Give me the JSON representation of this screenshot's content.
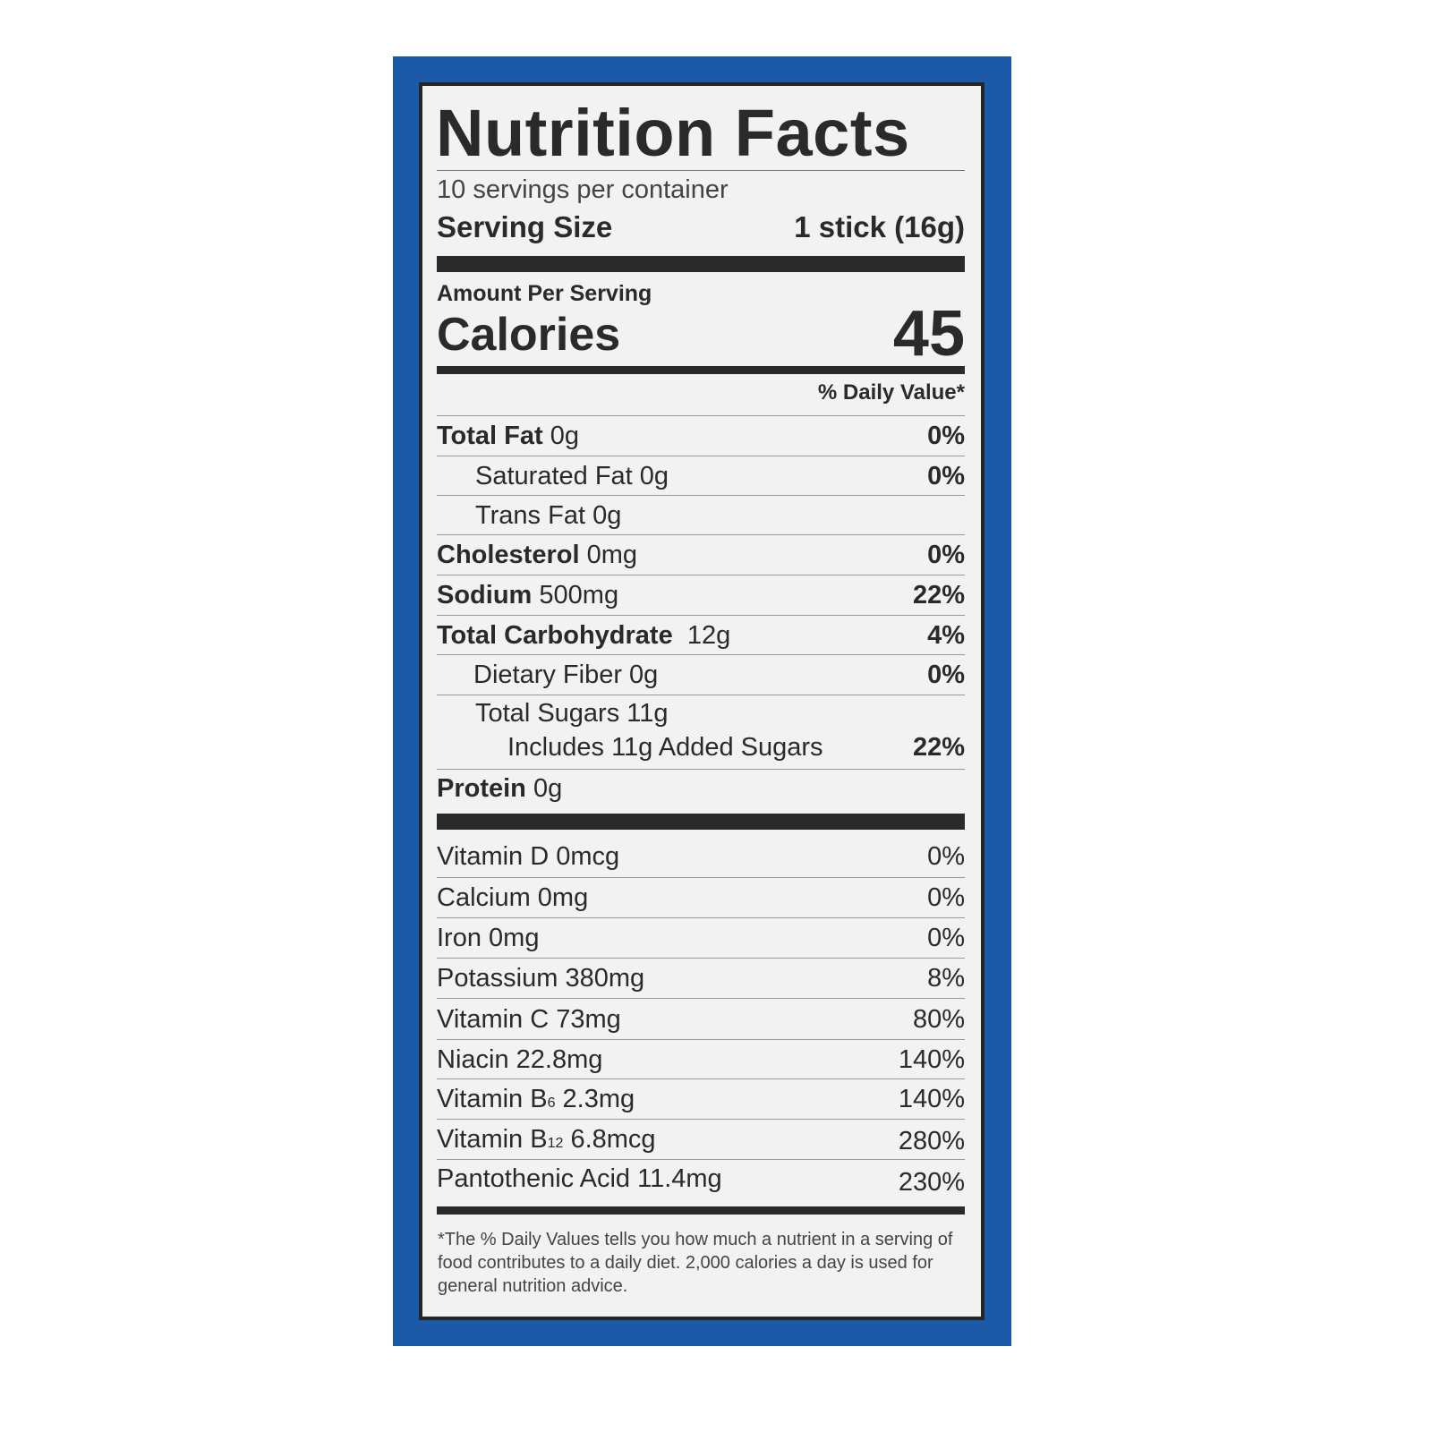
{
  "title": "Nutrition Facts",
  "servings_per_container": "10 servings per container",
  "serving_size": {
    "label": "Serving Size",
    "value": "1 stick (16g)"
  },
  "amount_per_serving": "Amount Per Serving",
  "calories": {
    "label": "Calories",
    "value": "45"
  },
  "daily_value_header": "% Daily Value*",
  "nutrients": [
    {
      "label": "Total Fat",
      "amount": "0g",
      "dv": "0%"
    },
    {
      "label": "Saturated Fat 0g",
      "amount": "",
      "dv": "0%"
    },
    {
      "label": "Trans Fat 0g",
      "amount": "",
      "dv": ""
    },
    {
      "label": "Cholesterol",
      "amount": "0mg",
      "dv": "0%"
    },
    {
      "label": "Sodium",
      "amount": "500mg",
      "dv": "22%"
    },
    {
      "label": "Total Carbohydrate",
      "amount": "12g",
      "dv": "4%"
    },
    {
      "label": "Dietary Fiber 0g",
      "amount": "",
      "dv": "0%"
    },
    {
      "label": "Total Sugars 11g",
      "amount": "",
      "dv": ""
    },
    {
      "label": "Includes 11g Added Sugars",
      "amount": "",
      "dv": "22%"
    },
    {
      "label": "Protein",
      "amount": "0g",
      "dv": ""
    }
  ],
  "vitamins": [
    {
      "label": "Vitamin D 0mcg",
      "dv": "0%"
    },
    {
      "label": "Calcium 0mg",
      "dv": "0%"
    },
    {
      "label": "Iron 0mg",
      "dv": "0%"
    },
    {
      "label": "Potassium 380mg",
      "dv": "8%"
    },
    {
      "label": "Vitamin C 73mg",
      "dv": "80%"
    },
    {
      "label": "Niacin 22.8mg",
      "dv": "140%"
    },
    {
      "label": "Vitamin B",
      "sub": "6",
      "amount": "2.3mg",
      "dv": "140%"
    },
    {
      "label": "Vitamin B",
      "sub": "12",
      "amount": "6.8mcg",
      "dv": "280%"
    },
    {
      "label": "Pantothenic Acid 11.4mg",
      "dv": "230%"
    }
  ],
  "footnote": "*The % Daily Values tells you how much a nutrient in a serving of food contributes to a daily diet. 2,000 calories a day is used for general nutrition advice.",
  "colors": {
    "border_blue": "#1b5aa9",
    "panel": "#f1f2f1",
    "text": "#2a2a2a"
  }
}
